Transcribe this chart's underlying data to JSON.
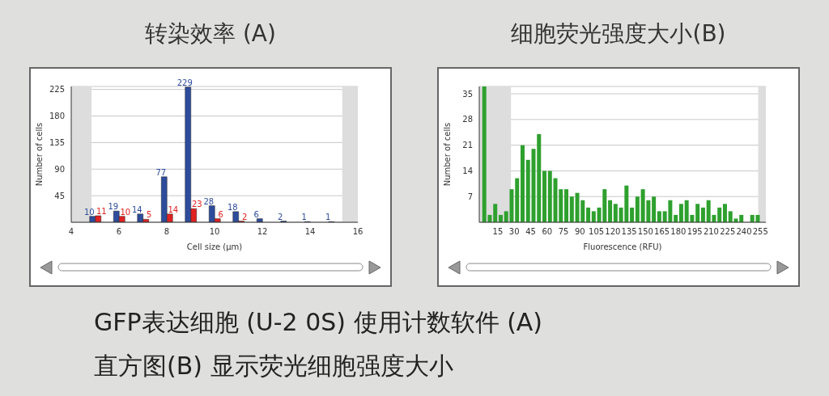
{
  "chart_data": [
    {
      "type": "bar",
      "title": "转染效率 (A)",
      "xlabel": "Cell size (μm)",
      "ylabel": "Number of cells",
      "x": [
        5,
        6,
        7,
        8,
        9,
        10,
        11,
        12,
        13,
        14,
        15
      ],
      "series": [
        {
          "color": "#2e4c9c",
          "values": [
            10,
            19,
            14,
            77,
            229,
            28,
            18,
            6,
            2,
            1,
            1
          ]
        },
        {
          "color": "#e02222",
          "values": [
            11,
            10,
            5,
            14,
            23,
            6,
            2,
            null,
            null,
            null,
            null
          ]
        }
      ],
      "data_labels": true,
      "xlim": [
        4,
        16
      ],
      "xticks": [
        4,
        6,
        8,
        10,
        12,
        14,
        16
      ],
      "ylim": [
        0,
        230
      ],
      "yticks": [
        45,
        90,
        135,
        180,
        225
      ],
      "grid": "y",
      "bands": [
        {
          "axis": "x",
          "from": 4,
          "to": 4.85,
          "color": "#dddddd"
        },
        {
          "axis": "x",
          "from": 15.35,
          "to": 16,
          "color": "#dddddd"
        }
      ],
      "annotations": [
        "GFP表达细胞 (U-2 0S) 使用计数软件 (A)",
        "直方图(B) 显示荧光细胞强度大小"
      ]
    },
    {
      "type": "histogram",
      "title": "细胞荧光强度大小(B)",
      "xlabel": "Fluorescence (RFU)",
      "ylabel": "Number of cells",
      "color": "#2ea02e",
      "bins": [
        0,
        5,
        10,
        15,
        20,
        25,
        30,
        35,
        40,
        45,
        50,
        55,
        60,
        65,
        70,
        75,
        80,
        85,
        90,
        95,
        100,
        105,
        110,
        115,
        120,
        125,
        130,
        135,
        140,
        145,
        150,
        155,
        160,
        165,
        170,
        175,
        180,
        185,
        190,
        195,
        200,
        205,
        210,
        215,
        220,
        225,
        230,
        235,
        240,
        245,
        250,
        255
      ],
      "values": [
        37,
        2,
        5,
        2,
        3,
        9,
        12,
        21,
        17,
        20,
        24,
        14,
        14,
        12,
        9,
        9,
        7,
        8,
        6,
        4,
        3,
        4,
        9,
        6,
        5,
        4,
        10,
        4,
        7,
        9,
        6,
        7,
        3,
        3,
        6,
        2,
        5,
        6,
        2,
        5,
        4,
        6,
        2,
        4,
        5,
        3,
        1,
        2,
        0,
        2,
        2
      ],
      "xlim": [
        -2,
        260
      ],
      "xticks": [
        15,
        30,
        45,
        60,
        75,
        90,
        105,
        120,
        135,
        150,
        165,
        180,
        195,
        210,
        225,
        240,
        255
      ],
      "ylim": [
        0,
        37
      ],
      "yticks": [
        7,
        14,
        21,
        28,
        35
      ],
      "grid": "y",
      "bands": [
        {
          "axis": "x",
          "from": -2,
          "to": 27,
          "color": "#dddddd"
        },
        {
          "axis": "x",
          "from": 253,
          "to": 260,
          "color": "#dddddd"
        }
      ]
    }
  ]
}
